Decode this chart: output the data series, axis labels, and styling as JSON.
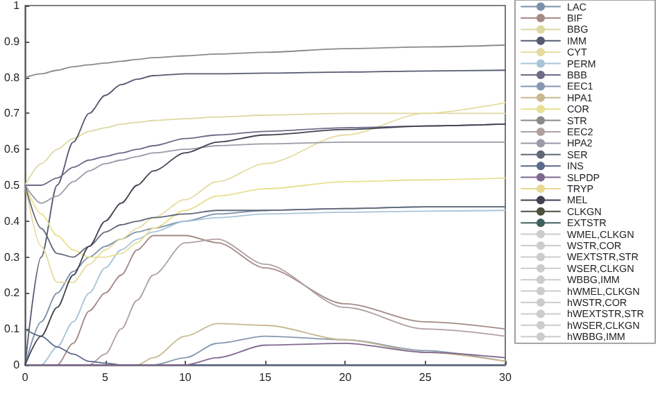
{
  "chart_data": {
    "type": "line",
    "x": [
      0,
      1,
      2,
      3,
      4,
      5,
      6,
      7,
      8,
      10,
      12,
      15,
      20,
      25,
      30
    ],
    "xlim": [
      0,
      30
    ],
    "xticks": [
      0,
      5,
      10,
      15,
      20,
      25,
      30
    ],
    "ylim": [
      0,
      1
    ],
    "yticks": [
      0,
      0.1,
      0.2,
      0.3,
      0.4,
      0.5,
      0.6,
      0.7,
      0.8,
      0.9,
      1
    ],
    "grid": false,
    "legend": "right",
    "marker": "none",
    "line_style": "solid",
    "series": [
      {
        "name": "LAC",
        "color": "#7b8fa8",
        "values": [
          0,
          0.12,
          0.2,
          0.26,
          0.3,
          0.33,
          0.35,
          0.37,
          0.38,
          0.4,
          0.42,
          0.43,
          0.435,
          0.44,
          0.44
        ]
      },
      {
        "name": "BIF",
        "color": "#a48a86",
        "values": [
          0,
          0,
          0,
          0.06,
          0.15,
          0.2,
          0.25,
          0.32,
          0.36,
          0.36,
          0.34,
          0.27,
          0.17,
          0.12,
          0.1
        ]
      },
      {
        "name": "BBG",
        "color": "#ddd8a0",
        "values": [
          0.5,
          0.56,
          0.6,
          0.63,
          0.65,
          0.66,
          0.67,
          0.675,
          0.68,
          0.685,
          0.69,
          0.695,
          0.7,
          0.7,
          0.7
        ]
      },
      {
        "name": "IMM",
        "color": "#555a70",
        "values": [
          0,
          0.3,
          0.5,
          0.62,
          0.7,
          0.75,
          0.78,
          0.795,
          0.805,
          0.81,
          0.81,
          0.812,
          0.815,
          0.818,
          0.82
        ]
      },
      {
        "name": "CYT",
        "color": "#e6dca0",
        "values": [
          0.5,
          0.33,
          0.23,
          0.23,
          0.28,
          0.32,
          0.35,
          0.38,
          0.41,
          0.46,
          0.51,
          0.56,
          0.64,
          0.7,
          0.73
        ]
      },
      {
        "name": "PERM",
        "color": "#a8c4d8",
        "values": [
          0,
          0,
          0.05,
          0.12,
          0.2,
          0.27,
          0.32,
          0.35,
          0.37,
          0.4,
          0.41,
          0.42,
          0.425,
          0.428,
          0.43
        ]
      },
      {
        "name": "BBB",
        "color": "#6e6a88",
        "values": [
          0.5,
          0.5,
          0.52,
          0.55,
          0.57,
          0.58,
          0.59,
          0.6,
          0.61,
          0.63,
          0.64,
          0.65,
          0.66,
          0.665,
          0.67
        ]
      },
      {
        "name": "EEC1",
        "color": "#8898b0",
        "values": [
          0,
          0,
          0,
          0,
          0,
          0,
          0,
          0,
          0,
          0.02,
          0.06,
          0.08,
          0.07,
          0.04,
          0.01
        ]
      },
      {
        "name": "HPA1",
        "color": "#c8b890",
        "values": [
          0,
          0,
          0,
          0,
          0,
          0,
          0,
          0,
          0.02,
          0.08,
          0.115,
          0.11,
          0.07,
          0.035,
          0.01
        ]
      },
      {
        "name": "COR",
        "color": "#e8e090",
        "values": [
          0.5,
          0.42,
          0.36,
          0.32,
          0.3,
          0.3,
          0.31,
          0.34,
          0.38,
          0.43,
          0.47,
          0.49,
          0.51,
          0.515,
          0.52
        ]
      },
      {
        "name": "STR",
        "color": "#8a8a8a",
        "values": [
          0.8,
          0.81,
          0.82,
          0.83,
          0.835,
          0.84,
          0.845,
          0.85,
          0.855,
          0.86,
          0.865,
          0.87,
          0.88,
          0.885,
          0.89
        ]
      },
      {
        "name": "EEC2",
        "color": "#b0a0a0",
        "values": [
          0,
          0,
          0,
          0,
          0,
          0.03,
          0.1,
          0.18,
          0.25,
          0.34,
          0.35,
          0.28,
          0.16,
          0.1,
          0.08
        ]
      },
      {
        "name": "HPA2",
        "color": "#9a9aa8",
        "values": [
          0.5,
          0.45,
          0.47,
          0.51,
          0.54,
          0.56,
          0.57,
          0.58,
          0.59,
          0.6,
          0.61,
          0.615,
          0.62,
          0.62,
          0.62
        ]
      },
      {
        "name": "SER",
        "color": "#606878",
        "values": [
          0.5,
          0.38,
          0.31,
          0.3,
          0.33,
          0.37,
          0.39,
          0.4,
          0.41,
          0.42,
          0.43,
          0.43,
          0.435,
          0.44,
          0.44
        ]
      },
      {
        "name": "INS",
        "color": "#5a6a88",
        "values": [
          0.1,
          0.08,
          0.05,
          0.03,
          0.01,
          0.005,
          0,
          0,
          0,
          0,
          0,
          0,
          0,
          0,
          0
        ]
      },
      {
        "name": "SLPDP",
        "color": "#806890",
        "values": [
          0,
          0,
          0,
          0,
          0,
          0,
          0,
          0,
          0,
          0,
          0.02,
          0.055,
          0.06,
          0.035,
          0.02
        ]
      },
      {
        "name": "TRYP",
        "color": "#e8d890",
        "values": [
          null,
          null,
          null,
          null,
          null,
          null,
          null,
          null,
          null,
          null,
          null,
          null,
          null,
          null,
          null
        ]
      },
      {
        "name": "MEL",
        "color": "#404050",
        "values": [
          0,
          0.08,
          0.16,
          0.25,
          0.33,
          0.4,
          0.45,
          0.5,
          0.54,
          0.59,
          0.62,
          0.64,
          0.655,
          0.665,
          0.67
        ]
      },
      {
        "name": "CLKGN",
        "color": "#505040",
        "values": [
          null,
          null,
          null,
          null,
          null,
          null,
          null,
          null,
          null,
          null,
          null,
          null,
          null,
          null,
          null
        ]
      },
      {
        "name": "EXTSTR",
        "color": "#406060",
        "values": [
          null,
          null,
          null,
          null,
          null,
          null,
          null,
          null,
          null,
          null,
          null,
          null,
          null,
          null,
          null
        ]
      },
      {
        "name": "WMEL,CLKGN",
        "color": "#cccccc",
        "values": [
          null,
          null,
          null,
          null,
          null,
          null,
          null,
          null,
          null,
          null,
          null,
          null,
          null,
          null,
          null
        ]
      },
      {
        "name": "WSTR,COR",
        "color": "#cccccc",
        "values": [
          null,
          null,
          null,
          null,
          null,
          null,
          null,
          null,
          null,
          null,
          null,
          null,
          null,
          null,
          null
        ]
      },
      {
        "name": "WEXTSTR,STR",
        "color": "#cccccc",
        "values": [
          null,
          null,
          null,
          null,
          null,
          null,
          null,
          null,
          null,
          null,
          null,
          null,
          null,
          null,
          null
        ]
      },
      {
        "name": "WSER,CLKGN",
        "color": "#cccccc",
        "values": [
          null,
          null,
          null,
          null,
          null,
          null,
          null,
          null,
          null,
          null,
          null,
          null,
          null,
          null,
          null
        ]
      },
      {
        "name": "WBBG,IMM",
        "color": "#cccccc",
        "values": [
          null,
          null,
          null,
          null,
          null,
          null,
          null,
          null,
          null,
          null,
          null,
          null,
          null,
          null,
          null
        ]
      },
      {
        "name": "hWMEL,CLKGN",
        "color": "#cccccc",
        "values": [
          null,
          null,
          null,
          null,
          null,
          null,
          null,
          null,
          null,
          null,
          null,
          null,
          null,
          null,
          null
        ]
      },
      {
        "name": "hWSTR,COR",
        "color": "#cccccc",
        "values": [
          null,
          null,
          null,
          null,
          null,
          null,
          null,
          null,
          null,
          null,
          null,
          null,
          null,
          null,
          null
        ]
      },
      {
        "name": "hWEXTSTR,STR",
        "color": "#cccccc",
        "values": [
          null,
          null,
          null,
          null,
          null,
          null,
          null,
          null,
          null,
          null,
          null,
          null,
          null,
          null,
          null
        ]
      },
      {
        "name": "hWSER,CLKGN",
        "color": "#cccccc",
        "values": [
          null,
          null,
          null,
          null,
          null,
          null,
          null,
          null,
          null,
          null,
          null,
          null,
          null,
          null,
          null
        ]
      },
      {
        "name": "hWBBG,IMM",
        "color": "#cccccc",
        "values": [
          null,
          null,
          null,
          null,
          null,
          null,
          null,
          null,
          null,
          null,
          null,
          null,
          null,
          null,
          null
        ]
      }
    ]
  }
}
